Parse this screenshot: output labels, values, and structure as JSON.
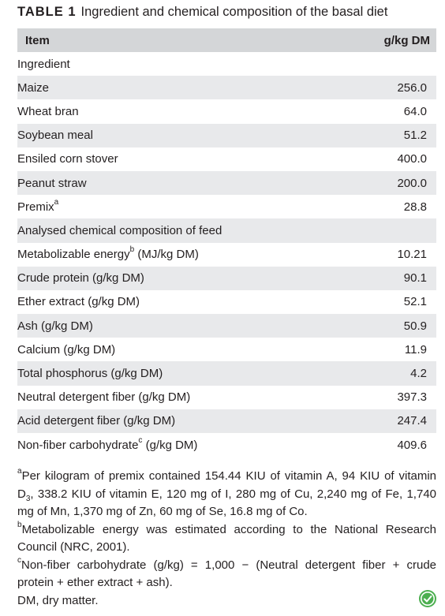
{
  "caption": {
    "label": "TABLE 1",
    "text": "Ingredient and chemical composition of the basal diet"
  },
  "header": {
    "item": "Item",
    "unit": "g/kg DM"
  },
  "section_ingredient": "Ingredient",
  "ingredients": [
    {
      "name": "Maize",
      "value": "256.0"
    },
    {
      "name": "Wheat bran",
      "value": "64.0"
    },
    {
      "name": "Soybean meal",
      "value": "51.2"
    },
    {
      "name": "Ensiled corn stover",
      "value": "400.0"
    },
    {
      "name": "Peanut straw",
      "value": "200.0"
    },
    {
      "name": "Premix",
      "sup": "a",
      "value": "28.8"
    }
  ],
  "section_chemical": "Analysed chemical composition of feed",
  "chemical": [
    {
      "name": "Metabolizable energy",
      "sup": "b",
      "unit": " (MJ/kg DM)",
      "value": "10.21"
    },
    {
      "name": "Crude protein (g/kg DM)",
      "value": "90.1"
    },
    {
      "name": "Ether extract (g/kg DM)",
      "value": "52.1"
    },
    {
      "name": "Ash (g/kg DM)",
      "value": "50.9"
    },
    {
      "name": "Calcium (g/kg DM)",
      "value": "11.9"
    },
    {
      "name": "Total phosphorus (g/kg DM)",
      "value": "4.2"
    },
    {
      "name": "Neutral detergent fiber (g/kg DM)",
      "value": "397.3"
    },
    {
      "name": "Acid detergent fiber (g/kg DM)",
      "value": "247.4"
    },
    {
      "name": "Non-fiber carbohydrate",
      "sup": "c",
      "unit": " (g/kg DM)",
      "value": "409.6"
    }
  ],
  "footnotes": {
    "a_mark": "a",
    "a_text_1": "Per kilogram of premix contained 154.44 KIU of vitamin A, 94 KIU of vitamin D",
    "a_sub": "3",
    "a_text_2": ", 338.2 KIU of vitamin E, 120 mg of I, 280 mg of Cu, 2,240 mg of Fe, 1,740 mg of Mn, 1,370 mg of Zn, 60 mg of Se, 16.8 mg of Co.",
    "b_mark": "b",
    "b_text": "Metabolizable energy was estimated according to the National Research Council (NRC, 2001).",
    "c_mark": "c",
    "c_text": "Non-fiber carbohydrate (g/kg) = 1,000 − (Neutral detergent fiber + crude protein + ether extract + ash).",
    "dm_text": "DM, dry matter."
  },
  "colors": {
    "header_bg": "#d4d6d8",
    "stripe_bg": "#e8e9eb",
    "badge": "#4caf50"
  },
  "badge_icon": "leaf-check-icon"
}
